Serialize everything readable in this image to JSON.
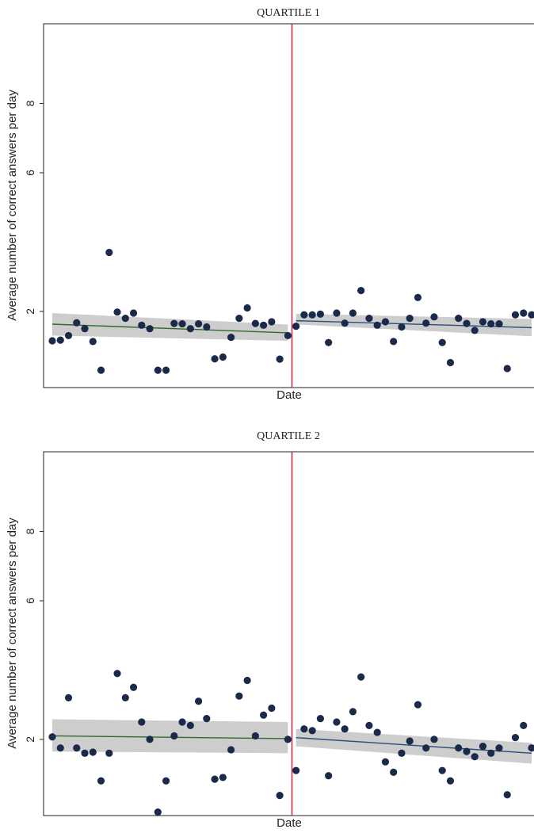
{
  "chart_data": [
    {
      "type": "scatter",
      "title": "QUARTILE 1",
      "xlabel": "Date",
      "ylabel": "Average number of correct answers per day",
      "ylim": [
        -0.2,
        10.3
      ],
      "yticks": [
        2,
        6,
        8
      ],
      "xlim": [
        0,
        60
      ],
      "grid": false,
      "cutoff_x": 30.5,
      "colors": {
        "points": "#1b2a4a",
        "fit_before": "#2e6b2e",
        "fit_after": "#2b4d7a",
        "ci": "#c8c8c8",
        "cutoff": "#c8243c"
      },
      "points": {
        "x": [
          1,
          2,
          3,
          4,
          5,
          6,
          7,
          8,
          9,
          10,
          11,
          12,
          13,
          14,
          15,
          16,
          17,
          18,
          19,
          20,
          21,
          22,
          23,
          24,
          25,
          26,
          27,
          28,
          29,
          30,
          31,
          32,
          33,
          34,
          35,
          36,
          37,
          38,
          39,
          40,
          41,
          42,
          43,
          44,
          45,
          46,
          47,
          48,
          49,
          50,
          51,
          52,
          53,
          54,
          55,
          56,
          57,
          58,
          59,
          60
        ],
        "y": [
          1.15,
          1.17,
          1.3,
          1.67,
          1.5,
          1.13,
          0.3,
          3.7,
          1.98,
          1.8,
          1.95,
          1.6,
          1.5,
          0.3,
          0.3,
          1.65,
          1.64,
          1.5,
          1.64,
          1.55,
          0.63,
          0.68,
          1.25,
          1.8,
          2.1,
          1.65,
          1.6,
          1.7,
          0.62,
          1.3,
          1.57,
          1.9,
          1.9,
          1.92,
          1.1,
          1.95,
          1.66,
          1.95,
          2.6,
          1.8,
          1.6,
          1.7,
          1.13,
          1.55,
          1.8,
          2.4,
          1.66,
          1.84,
          1.1,
          0.52,
          1.8,
          1.65,
          1.45,
          1.7,
          1.64,
          1.64,
          0.35,
          1.9,
          1.95,
          1.9
        ]
      },
      "fits": [
        {
          "x": [
            1,
            30
          ],
          "y": [
            1.63,
            1.38
          ],
          "ci_low": [
            1.3,
            1.15
          ],
          "ci_high": [
            1.95,
            1.62
          ]
        },
        {
          "x": [
            31,
            60
          ],
          "y": [
            1.73,
            1.53
          ],
          "ci_low": [
            1.62,
            1.28
          ],
          "ci_high": [
            1.93,
            1.78
          ]
        }
      ]
    },
    {
      "type": "scatter",
      "title": "QUARTILE 2",
      "xlabel": "Date",
      "ylabel": "Average number of correct answers per day",
      "ylim": [
        -0.2,
        10.3
      ],
      "yticks": [
        2,
        6,
        8
      ],
      "xlim": [
        0,
        60
      ],
      "grid": false,
      "cutoff_x": 30.5,
      "colors": {
        "points": "#1b2a4a",
        "fit_before": "#2e6b2e",
        "fit_after": "#2b4d7a",
        "ci": "#c8c8c8",
        "cutoff": "#c8243c"
      },
      "points": {
        "x": [
          1,
          2,
          3,
          4,
          5,
          6,
          7,
          8,
          9,
          10,
          11,
          12,
          13,
          14,
          15,
          16,
          17,
          18,
          19,
          20,
          21,
          22,
          23,
          24,
          25,
          26,
          27,
          28,
          29,
          30,
          31,
          32,
          33,
          34,
          35,
          36,
          37,
          38,
          39,
          40,
          41,
          42,
          43,
          44,
          45,
          46,
          47,
          48,
          49,
          50,
          51,
          52,
          53,
          54,
          55,
          56,
          57,
          58,
          59,
          60
        ],
        "y": [
          2.07,
          1.75,
          3.2,
          1.75,
          1.6,
          1.63,
          0.8,
          1.6,
          3.9,
          3.2,
          3.5,
          2.5,
          2.0,
          -0.1,
          0.8,
          2.1,
          2.5,
          2.4,
          3.1,
          2.6,
          0.85,
          0.9,
          1.7,
          3.25,
          3.7,
          2.1,
          2.7,
          2.9,
          0.38,
          2.0,
          1.1,
          2.3,
          2.25,
          2.6,
          0.95,
          2.5,
          2.3,
          2.8,
          3.8,
          2.4,
          2.2,
          1.35,
          1.05,
          1.6,
          1.95,
          3.0,
          1.75,
          2.0,
          1.1,
          0.8,
          1.75,
          1.65,
          1.5,
          1.8,
          1.6,
          1.75,
          0.4,
          2.05,
          2.4,
          1.75
        ]
      },
      "fits": [
        {
          "x": [
            1,
            30
          ],
          "y": [
            2.1,
            2.02
          ],
          "ci_low": [
            1.65,
            1.6
          ],
          "ci_high": [
            2.58,
            2.5
          ]
        },
        {
          "x": [
            31,
            60
          ],
          "y": [
            2.05,
            1.6
          ],
          "ci_low": [
            1.8,
            1.3
          ],
          "ci_high": [
            2.3,
            1.9
          ]
        }
      ]
    }
  ]
}
